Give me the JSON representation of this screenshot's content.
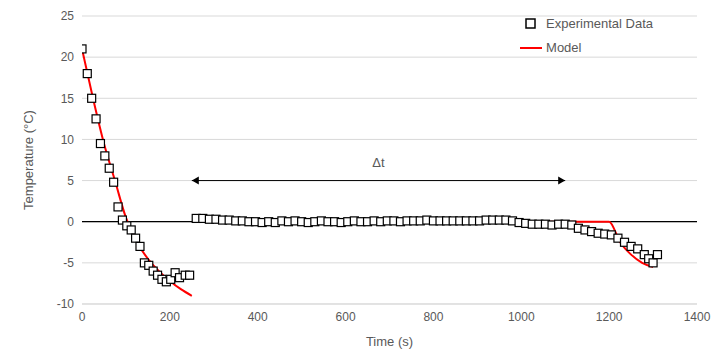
{
  "chart_data": {
    "type": "scatter",
    "x_label": "Time (s)",
    "y_label": "Temperature (°C)",
    "xlim": [
      0,
      1400
    ],
    "xticks": [
      0,
      200,
      400,
      600,
      800,
      1000,
      1200,
      1400
    ],
    "ylim": [
      -10,
      25
    ],
    "yticks": [
      -10,
      -5,
      0,
      5,
      10,
      15,
      20,
      25
    ],
    "grid": true,
    "legend": "top right",
    "series": [
      {
        "name": "Experimental Data",
        "type": "scatter",
        "marker": "square",
        "color": "#000000",
        "x": [
          0,
          12,
          22,
          32,
          42,
          52,
          62,
          72,
          82,
          92,
          102,
          112,
          122,
          132,
          142,
          152,
          162,
          172,
          182,
          192,
          202,
          212,
          222,
          235,
          245,
          260,
          275,
          290,
          305,
          320,
          335,
          350,
          365,
          380,
          395,
          410,
          425,
          440,
          455,
          470,
          485,
          500,
          515,
          530,
          545,
          560,
          575,
          590,
          605,
          620,
          635,
          650,
          665,
          680,
          695,
          710,
          725,
          740,
          755,
          770,
          785,
          800,
          815,
          830,
          845,
          860,
          875,
          890,
          905,
          920,
          935,
          950,
          965,
          980,
          995,
          1010,
          1025,
          1040,
          1055,
          1070,
          1085,
          1100,
          1115,
          1130,
          1145,
          1160,
          1175,
          1190,
          1205,
          1220,
          1235,
          1250,
          1265,
          1280,
          1290,
          1300,
          1310
        ],
        "values": [
          21,
          18,
          15,
          12.5,
          9.5,
          8,
          6.5,
          4.8,
          1.8,
          0.2,
          -0.5,
          -1,
          -2,
          -3,
          -5,
          -5.3,
          -6,
          -6.5,
          -7,
          -7.3,
          -7,
          -6.2,
          -6.8,
          -6.5,
          -6.5,
          0.4,
          0.4,
          0.3,
          0.3,
          0.2,
          0.2,
          0.1,
          0.1,
          0,
          0,
          -0.1,
          0,
          -0.1,
          0.1,
          0,
          0.1,
          0,
          -0.1,
          0,
          0.1,
          0,
          0,
          -0.1,
          0,
          0.1,
          0,
          0,
          0.1,
          0,
          0.1,
          0.1,
          0,
          0.1,
          0.1,
          0.1,
          0.2,
          0.1,
          0.1,
          0.1,
          0.1,
          0.1,
          0.1,
          0.1,
          0.1,
          0.2,
          0.2,
          0.2,
          0.2,
          0.1,
          -0.1,
          -0.2,
          -0.3,
          -0.3,
          -0.3,
          -0.4,
          -0.3,
          -0.3,
          -0.4,
          -0.8,
          -1,
          -1.2,
          -1.4,
          -1.5,
          -1.6,
          -2,
          -2.5,
          -3,
          -3.3,
          -4,
          -4.5,
          -5,
          -4
        ]
      },
      {
        "name": "Model",
        "type": "line",
        "color": "#ff0000",
        "x": [
          0,
          25,
          50,
          75,
          100,
          125,
          150,
          175,
          200,
          225,
          250,
          255,
          260,
          1200,
          1225,
          1250,
          1275,
          1300
        ],
        "values": [
          21,
          15,
          9.5,
          5,
          0.5,
          -2.5,
          -4.5,
          -6,
          -7.2,
          -8.2,
          -9,
          null,
          0,
          0,
          -2.5,
          -4,
          -5,
          -5.5
        ]
      }
    ],
    "annotations": [
      {
        "text": "Δt",
        "x": [
          250,
          1100
        ],
        "y": 5
      }
    ]
  }
}
